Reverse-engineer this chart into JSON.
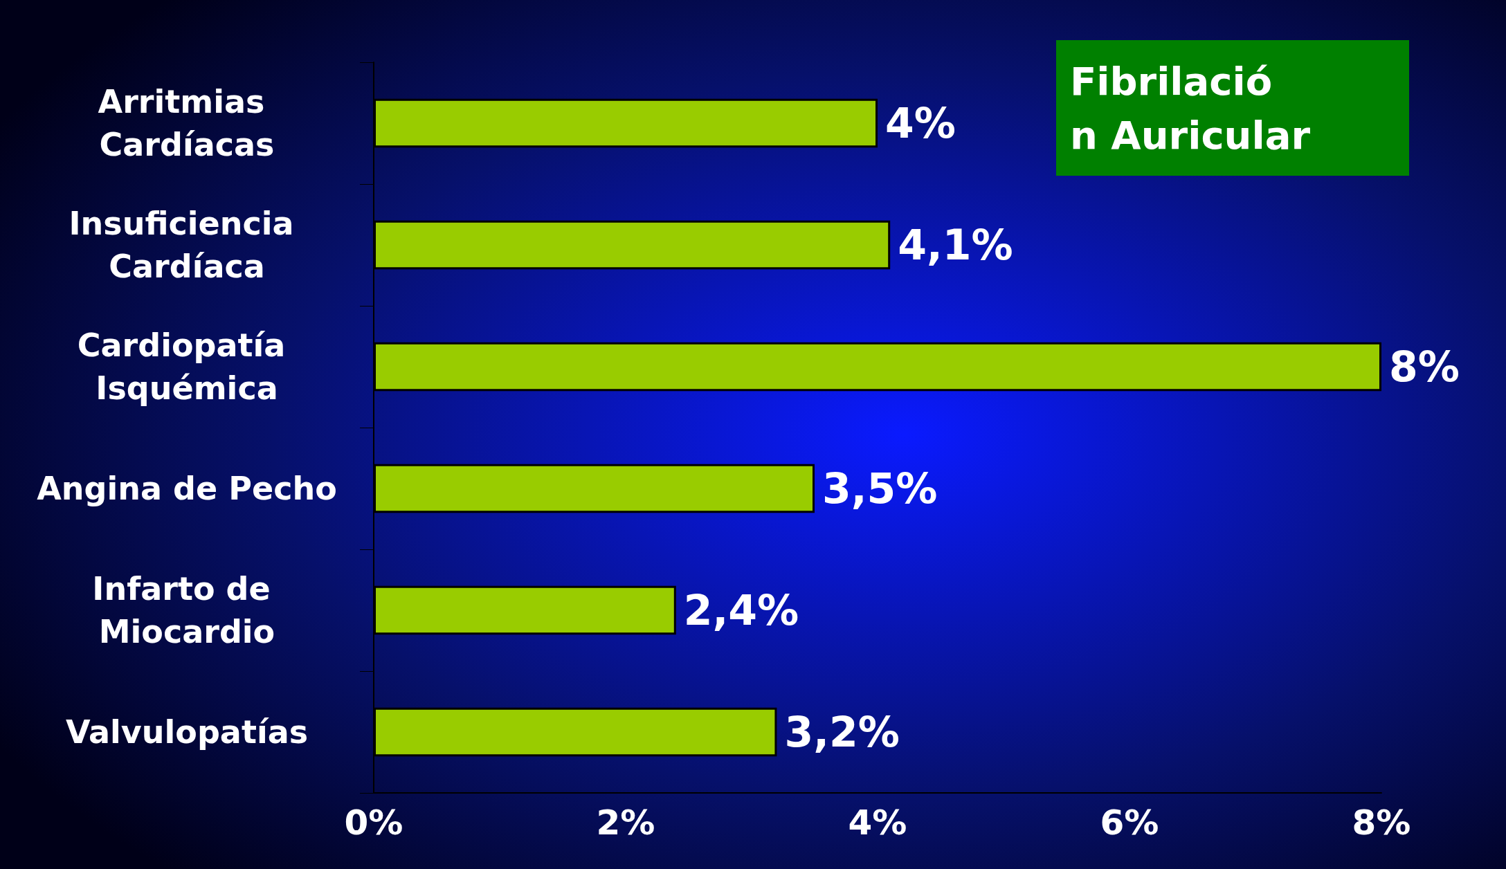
{
  "chart_data": {
    "type": "bar",
    "orientation": "horizontal",
    "title": "Fibrilación Auricular",
    "categories": [
      "Arritmias Cardíacas",
      "Insuficiencia Cardíaca",
      "Cardiopatía Isquémica",
      "Angina de Pecho",
      "Infarto de Miocardio",
      "Valvulopatías"
    ],
    "values": [
      4,
      4.1,
      8,
      3.5,
      2.4,
      3.2
    ],
    "value_labels": [
      "4%",
      "4,1%",
      "8%",
      "3,5%",
      "2,4%",
      "3,2%"
    ],
    "color": "#99cc00",
    "xlim": [
      0,
      8
    ],
    "xticks": [
      {
        "value": 0,
        "label": "0%"
      },
      {
        "value": 2,
        "label": "2%"
      },
      {
        "value": 4,
        "label": "4%"
      },
      {
        "value": 6,
        "label": "6%"
      },
      {
        "value": 8,
        "label": "8%"
      }
    ],
    "grid": false
  }
}
